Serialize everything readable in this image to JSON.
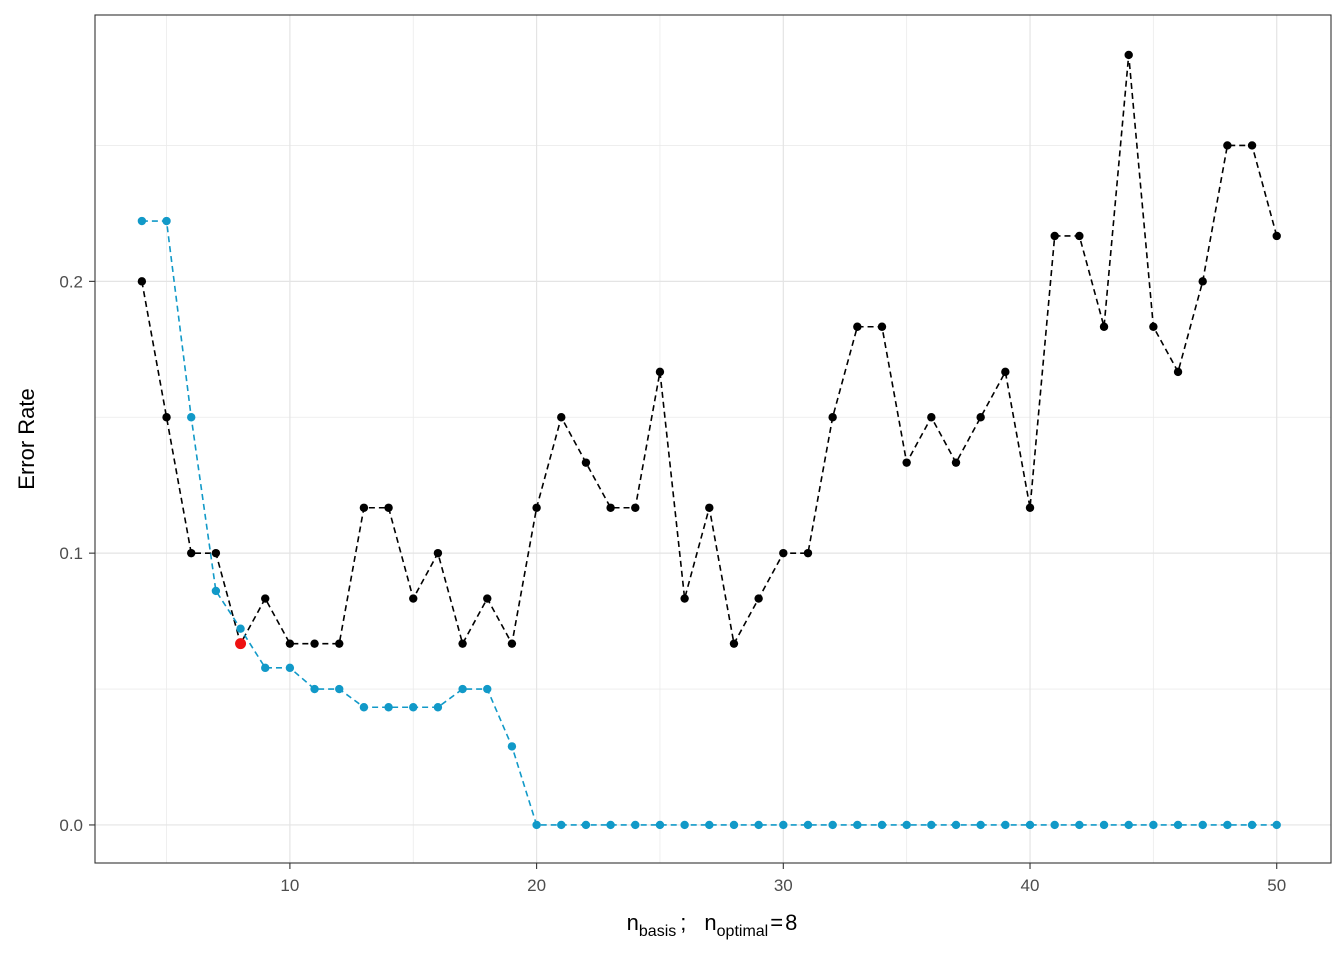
{
  "chart_data": {
    "type": "line",
    "title": "",
    "xlabel": {
      "n": "n",
      "basis_sub": "basis",
      "separator": ";",
      "optimal_sub": "optimal",
      "equals": "=",
      "optimal_value": "8"
    },
    "ylabel": "Error Rate",
    "xlim": [
      2.1,
      52.2
    ],
    "ylim": [
      -0.014,
      0.298
    ],
    "x_ticks": [
      10,
      20,
      30,
      40,
      50
    ],
    "x_tick_labels": [
      "10",
      "20",
      "30",
      "40",
      "50"
    ],
    "y_ticks": [
      0.0,
      0.1,
      0.2
    ],
    "y_tick_labels": [
      "0.0",
      "0.1",
      "0.2"
    ],
    "grid": true,
    "legend": "none",
    "x": [
      4,
      5,
      6,
      7,
      8,
      9,
      10,
      11,
      12,
      13,
      14,
      15,
      16,
      17,
      18,
      19,
      20,
      21,
      22,
      23,
      24,
      25,
      26,
      27,
      28,
      29,
      30,
      31,
      32,
      33,
      34,
      35,
      36,
      37,
      38,
      39,
      40,
      41,
      42,
      43,
      44,
      45,
      46,
      47,
      48,
      49,
      50
    ],
    "series": [
      {
        "color": "#000000",
        "values": [
          0.2,
          0.15,
          0.1,
          0.1,
          0.0667,
          0.0833,
          0.0667,
          0.0667,
          0.0667,
          0.1167,
          0.1167,
          0.0833,
          0.1,
          0.0667,
          0.0833,
          0.0667,
          0.1167,
          0.15,
          0.1333,
          0.1167,
          0.1167,
          0.1667,
          0.0833,
          0.1167,
          0.0667,
          0.0833,
          0.1,
          0.1,
          0.15,
          0.1833,
          0.1833,
          0.1333,
          0.15,
          0.1333,
          0.15,
          0.1667,
          0.1167,
          0.2167,
          0.2167,
          0.1833,
          0.2833,
          0.1833,
          0.1667,
          0.2,
          0.25,
          0.25,
          0.2167
        ]
      },
      {
        "color": "#1199c8",
        "values": [
          0.2222,
          0.2222,
          0.15,
          0.0861,
          0.0722,
          0.0578,
          0.0578,
          0.05,
          0.05,
          0.0433,
          0.0433,
          0.0433,
          0.0433,
          0.05,
          0.05,
          0.0289,
          0,
          0,
          0,
          0,
          0,
          0,
          0,
          0,
          0,
          0,
          0,
          0,
          0,
          0,
          0,
          0,
          0,
          0,
          0,
          0,
          0,
          0,
          0,
          0,
          0,
          0,
          0,
          0,
          0,
          0,
          0
        ]
      }
    ],
    "highlight": {
      "x": 8,
      "y": 0.0667,
      "color": "#ee1111"
    }
  }
}
